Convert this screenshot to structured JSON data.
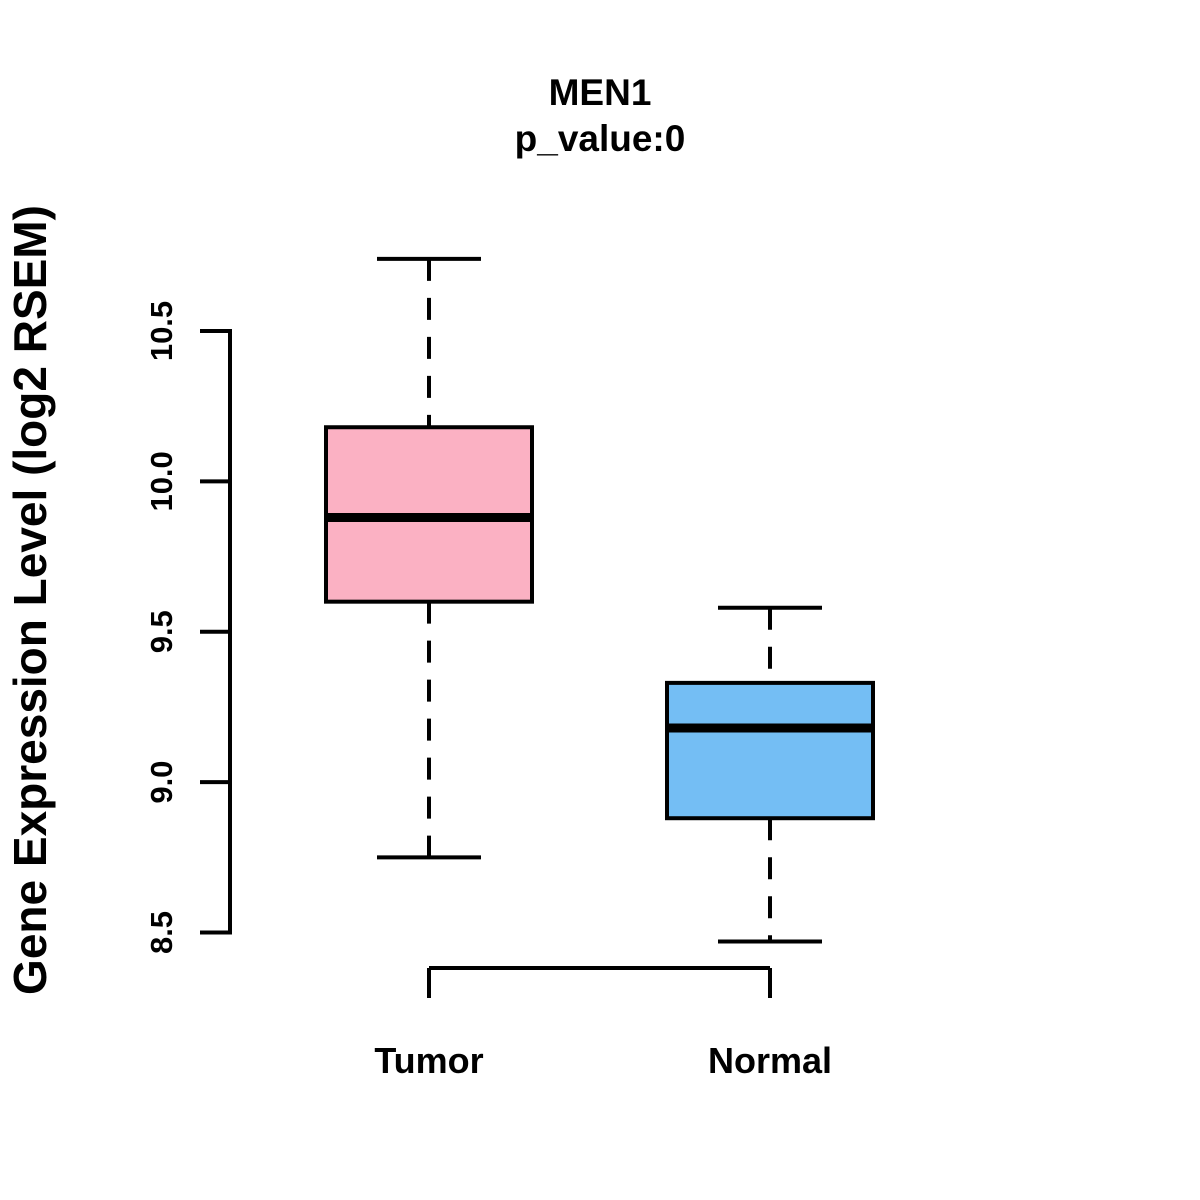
{
  "chart_data": {
    "type": "boxplot",
    "title": "MEN1",
    "subtitle": "p_value:0",
    "ylabel": "Gene Expression Level (log2 RSEM)",
    "xlabel": "",
    "categories": [
      "Tumor",
      "Normal"
    ],
    "series": [
      {
        "name": "Tumor",
        "fill_color": "#FBB1C3",
        "whisker_low": 8.75,
        "q1": 9.6,
        "median": 9.88,
        "q3": 10.18,
        "whisker_high": 10.74,
        "outliers": []
      },
      {
        "name": "Normal",
        "fill_color": "#74BEF4",
        "whisker_low": 8.47,
        "q1": 8.88,
        "median": 9.18,
        "q3": 9.33,
        "whisker_high": 9.58,
        "outliers": []
      }
    ],
    "y_axis": {
      "min": 8.5,
      "max": 10.5,
      "tick_labels": [
        "8.5",
        "9.0",
        "9.5",
        "10.0",
        "10.5"
      ],
      "tick_values": [
        8.5,
        9.0,
        9.5,
        10.0,
        10.5
      ]
    },
    "grid": false,
    "legend_position": "none",
    "line_color": "#000000",
    "background_color": "#FFFFFF"
  }
}
